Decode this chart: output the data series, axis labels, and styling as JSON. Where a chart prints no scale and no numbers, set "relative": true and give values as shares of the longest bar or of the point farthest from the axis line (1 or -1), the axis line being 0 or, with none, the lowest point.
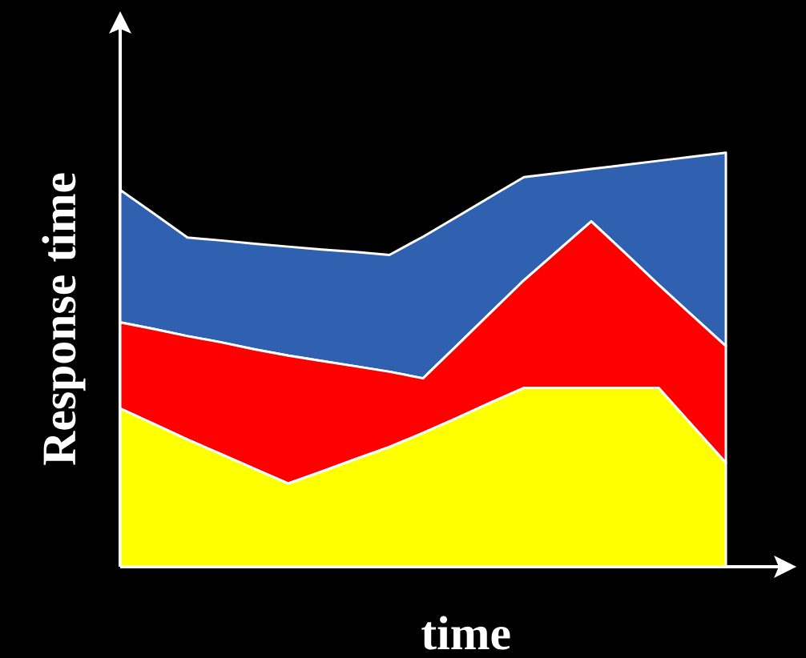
{
  "chart_data": {
    "type": "area",
    "stacked": true,
    "relative": true,
    "xlabel": "time",
    "ylabel": "Response time",
    "categories": [
      null,
      null,
      null,
      null,
      null,
      null,
      null,
      null,
      null,
      null,
      null,
      null,
      null,
      null,
      null,
      null,
      null,
      null,
      null
    ],
    "series": [
      {
        "color": "#ffff00",
        "values": [
          0.382,
          0.345,
          0.307,
          0.272,
          0.236,
          0.201,
          0.23,
          0.26,
          0.289,
          0.323,
          0.359,
          0.396,
          0.432,
          0.432,
          0.432,
          0.432,
          0.432,
          0.341,
          0.251
        ]
      },
      {
        "color": "#ff0000",
        "values": [
          0.208,
          0.229,
          0.25,
          0.27,
          0.289,
          0.309,
          0.267,
          0.224,
          0.182,
          0.132,
          0.1749,
          0.217,
          0.26,
          0.331,
          0.402,
          0.326,
          0.249,
          0.2659,
          0.282
        ]
      },
      {
        "color": "#3060b0",
        "values": [
          0.32,
          0.279,
          0.238,
          0.246,
          0.255,
          0.263,
          0.269,
          0.276,
          0.282,
          0.342,
          0.311,
          0.28,
          0.249,
          0.1878,
          0.1267,
          0.2124,
          0.2993,
          0.3833,
          0.467
        ]
      }
    ]
  }
}
